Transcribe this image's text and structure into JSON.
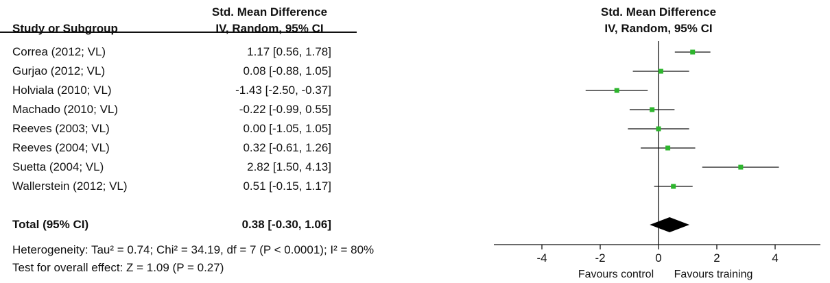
{
  "header": {
    "study_col": "Study or Subgroup",
    "effect_line1": "Std. Mean Difference",
    "effect_line2": "IV, Random, 95% CI",
    "plot_line1": "Std. Mean Difference",
    "plot_line2": "IV, Random, 95% CI"
  },
  "rows": [
    {
      "study": "Correa (2012; VL)",
      "ci_text": "1.17 [0.56, 1.78]"
    },
    {
      "study": "Gurjao (2012; VL)",
      "ci_text": "0.08 [-0.88, 1.05]"
    },
    {
      "study": "Holviala (2010; VL)",
      "ci_text": "-1.43 [-2.50, -0.37]"
    },
    {
      "study": "Machado (2010; VL)",
      "ci_text": "-0.22 [-0.99, 0.55]"
    },
    {
      "study": "Reeves (2003; VL)",
      "ci_text": "0.00 [-1.05, 1.05]"
    },
    {
      "study": "Reeves (2004; VL)",
      "ci_text": "0.32 [-0.61, 1.26]"
    },
    {
      "study": "Suetta (2004; VL)",
      "ci_text": "2.82 [1.50, 4.13]"
    },
    {
      "study": "Wallerstein (2012; VL)",
      "ci_text": "0.51 [-0.15, 1.17]"
    }
  ],
  "total": {
    "label": "Total (95% CI)",
    "ci_text": "0.38 [-0.30, 1.06]"
  },
  "footer": {
    "heterogeneity": "Heterogeneity: Tau² = 0.74; Chi² = 34.19, df = 7 (P < 0.0001); I² = 80%",
    "overall": "Test for overall effect: Z = 1.09 (P = 0.27)"
  },
  "axis": {
    "favours_left": "Favours control",
    "favours_right": "Favours training"
  },
  "colors": {
    "marker": "#2db52d",
    "line": "#111111"
  },
  "chart_data": {
    "type": "forest",
    "title": "",
    "xlabel": "",
    "ylabel": "",
    "xlim": [
      -5,
      5.5
    ],
    "xticks": [
      -4,
      -2,
      0,
      2,
      4
    ],
    "categories": [
      "Correa (2012; VL)",
      "Gurjao (2012; VL)",
      "Holviala (2010; VL)",
      "Machado (2010; VL)",
      "Reeves (2003; VL)",
      "Reeves (2004; VL)",
      "Suetta (2004; VL)",
      "Wallerstein (2012; VL)"
    ],
    "values": [
      1.17,
      0.08,
      -1.43,
      -0.22,
      0.0,
      0.32,
      2.82,
      0.51
    ],
    "lower": [
      0.56,
      -0.88,
      -2.5,
      -0.99,
      -1.05,
      -0.61,
      1.5,
      -0.15
    ],
    "upper": [
      1.78,
      1.05,
      -0.37,
      0.55,
      1.05,
      1.26,
      4.13,
      1.17
    ],
    "pooled": {
      "value": 0.38,
      "lower": -0.3,
      "upper": 1.06
    }
  }
}
